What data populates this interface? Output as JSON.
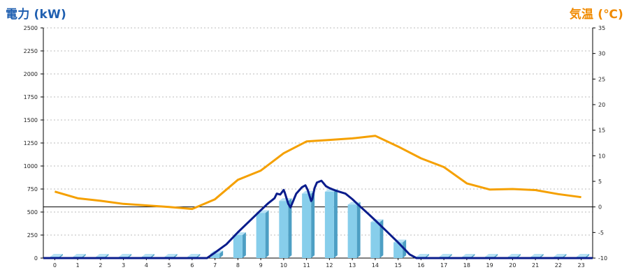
{
  "header": {
    "left_axis_title": "電力 (kW)",
    "right_axis_title": "気温 (℃)"
  },
  "colors": {
    "left_title": "#1f5fb0",
    "right_title": "#f08a00",
    "bars": "#87ceeb",
    "power_line": "#0a1c8c",
    "temp_line": "#f5a000",
    "grid": "#bbbbbb"
  },
  "chart_data": {
    "type": "bar",
    "categories": [
      "0",
      "1",
      "2",
      "3",
      "4",
      "5",
      "6",
      "7",
      "8",
      "9",
      "10",
      "11",
      "12",
      "13",
      "14",
      "15",
      "16",
      "17",
      "18",
      "19",
      "20",
      "21",
      "22",
      "23"
    ],
    "series": [
      {
        "type": "bar",
        "axis": "left",
        "values": [
          0,
          0,
          0,
          0,
          0,
          0,
          0,
          50,
          250,
          490,
          620,
          700,
          720,
          580,
          390,
          170,
          0,
          0,
          0,
          0,
          0,
          0,
          0,
          0
        ]
      },
      {
        "type": "line",
        "axis": "left",
        "points": [
          [
            6.65,
            0
          ],
          [
            7,
            60
          ],
          [
            7.5,
            150
          ],
          [
            8,
            280
          ],
          [
            8.5,
            400
          ],
          [
            9,
            520
          ],
          [
            9.3,
            590
          ],
          [
            9.6,
            650
          ],
          [
            9.7,
            700
          ],
          [
            9.85,
            690
          ],
          [
            10,
            740
          ],
          [
            10.05,
            710
          ],
          [
            10.2,
            590
          ],
          [
            10.3,
            550
          ],
          [
            10.45,
            640
          ],
          [
            10.55,
            700
          ],
          [
            10.8,
            770
          ],
          [
            10.95,
            790
          ],
          [
            11.05,
            740
          ],
          [
            11.2,
            620
          ],
          [
            11.25,
            640
          ],
          [
            11.35,
            760
          ],
          [
            11.45,
            820
          ],
          [
            11.65,
            840
          ],
          [
            11.85,
            780
          ],
          [
            12,
            760
          ],
          [
            12.3,
            730
          ],
          [
            12.7,
            700
          ],
          [
            13,
            640
          ],
          [
            13.3,
            570
          ],
          [
            13.7,
            480
          ],
          [
            14,
            410
          ],
          [
            14.5,
            290
          ],
          [
            15,
            170
          ],
          [
            15.5,
            40
          ],
          [
            15.8,
            0
          ]
        ]
      },
      {
        "type": "line",
        "axis": "right",
        "values": [
          3,
          1.7,
          1.2,
          0.6,
          0.3,
          0,
          -0.4,
          1.5,
          5.3,
          7.1,
          10.5,
          12.8,
          13.1,
          13.4,
          13.9,
          11.8,
          9.5,
          7.8,
          4.6,
          3.4,
          3.5,
          3.3,
          2.5,
          1.9
        ]
      }
    ],
    "left_axis": {
      "ylim": [
        0,
        2500
      ],
      "ticks": [
        "0",
        "250",
        "500",
        "750",
        "1000",
        "1250",
        "1500",
        "1750",
        "2000",
        "2250",
        "2500"
      ]
    },
    "right_axis": {
      "ylim": [
        -10,
        35
      ],
      "ticks": [
        "-10",
        "-5",
        "0",
        "5",
        "10",
        "15",
        "20",
        "25",
        "30",
        "35"
      ]
    },
    "reference_line": {
      "axis": "right",
      "value": 0
    },
    "grid": true,
    "legend": "none"
  }
}
